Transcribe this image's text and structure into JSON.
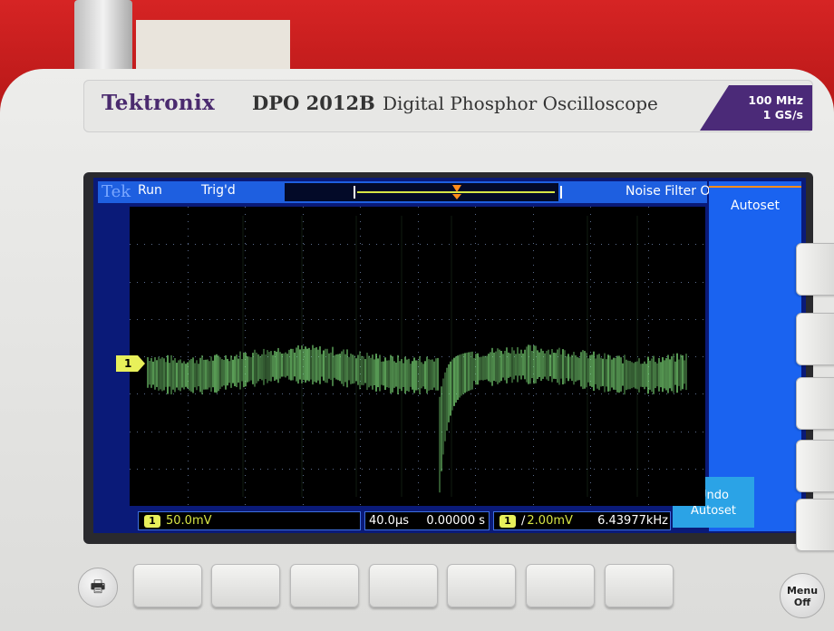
{
  "front_panel": {
    "brand": "Tektronix",
    "model": "DPO 2012B",
    "product_name": "Digital Phosphor Oscilloscope",
    "bandwidth": "100 MHz",
    "sample_rate": "1 GS/s"
  },
  "status_bar": {
    "logo": "Tek",
    "run_state": "Run",
    "trigger_state": "Trig'd",
    "noise_filter": "Noise Filter Of"
  },
  "side_menu": {
    "autoset_label": "Autoset",
    "undo_autoset_label": "Undo\nAutoset"
  },
  "channel_marker": "1",
  "readouts": {
    "ch1_tag": "1",
    "ch1_scale": "50.0mV",
    "time_per_div": "40.0µs",
    "trigger_position": "0.00000 s",
    "trigger_source_tag": "1",
    "trigger_level": "2.00mV",
    "trigger_slope_icon": "rising-edge-icon",
    "frequency": "6.43977kHz"
  },
  "front_buttons": {
    "print_icon": "printer-icon",
    "menu_off_label": "Menu\nOff",
    "softkey_count": 7
  },
  "colors": {
    "screen_bg": "#0a1a78",
    "status_bar": "#1e5fe0",
    "channel1": "#e8f05a",
    "trace": "#7fe07a",
    "trigger_marker": "#ff8c1a",
    "brand_purple": "#4b2a78"
  }
}
